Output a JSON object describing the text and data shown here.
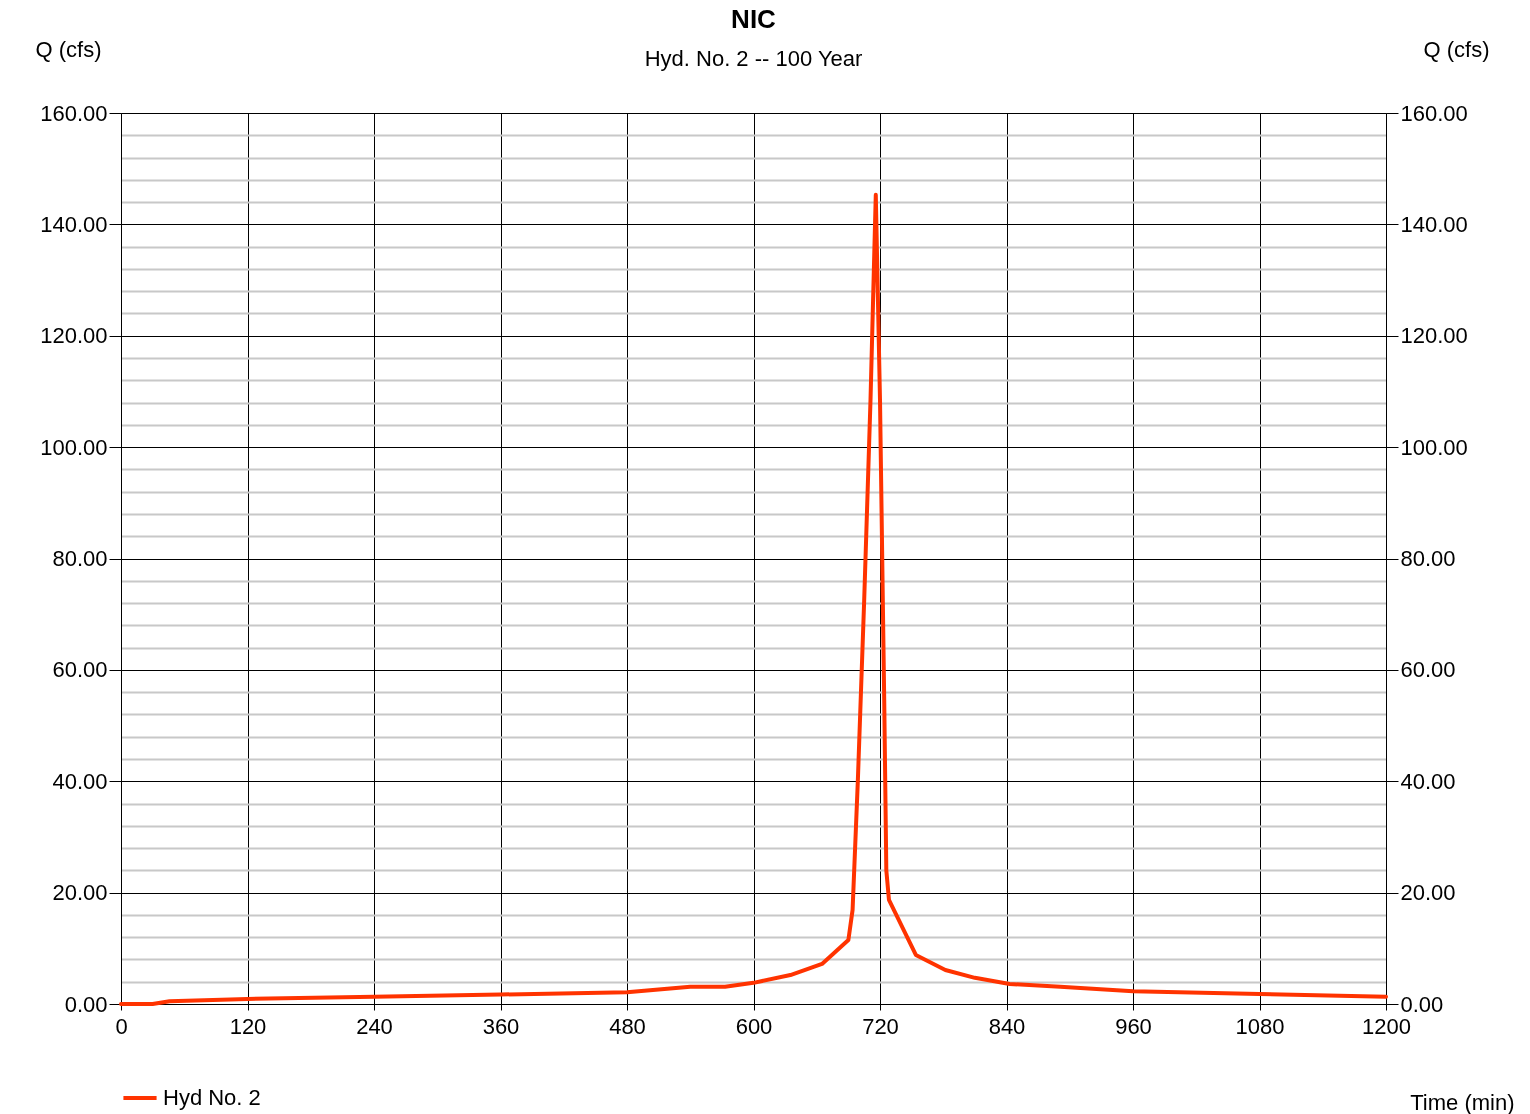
{
  "chart_data": {
    "type": "line",
    "title": "NIC",
    "subtitle": "Hyd. No. 2 -- 100 Year",
    "xlabel": "Time (min)",
    "ylabel": "Q (cfs)",
    "y2label": "Q (cfs)",
    "series": [
      {
        "name": "Hyd No. 2",
        "color": "#ff3300",
        "x": [
          0,
          30,
          46,
          120,
          240,
          360,
          480,
          540,
          573,
          600,
          635,
          665,
          690,
          694,
          699,
          705,
          711,
          716,
          720,
          724,
          726,
          728.5,
          754,
          782,
          810,
          843,
          891,
          960,
          1080,
          1200
        ],
        "values": [
          0,
          0,
          0.5,
          0.9,
          1.3,
          1.7,
          2.1,
          3.1,
          3.1,
          3.8,
          5.2,
          7.2,
          11.5,
          16.9,
          40.2,
          72.5,
          108.5,
          145.3,
          108.5,
          54.6,
          24,
          18.7,
          8.8,
          6.1,
          4.7,
          3.6,
          3.1,
          2.3,
          1.8,
          1.3
        ]
      }
    ],
    "xlim": [
      0,
      1200
    ],
    "xticks": [
      0,
      120,
      240,
      360,
      480,
      600,
      720,
      840,
      960,
      1080,
      1200
    ],
    "ylim": [
      0,
      160
    ],
    "yticks": [
      {
        "value": 0,
        "label": "0.00"
      },
      {
        "value": 4,
        "label": null
      },
      {
        "value": 8,
        "label": null
      },
      {
        "value": 12,
        "label": null
      },
      {
        "value": 16,
        "label": null
      },
      {
        "value": 20,
        "label": "20.00"
      },
      {
        "value": 24,
        "label": null
      },
      {
        "value": 28,
        "label": null
      },
      {
        "value": 32,
        "label": null
      },
      {
        "value": 36,
        "label": null
      },
      {
        "value": 40,
        "label": "40.00"
      },
      {
        "value": 44,
        "label": null
      },
      {
        "value": 48,
        "label": null
      },
      {
        "value": 52,
        "label": null
      },
      {
        "value": 56,
        "label": null
      },
      {
        "value": 60,
        "label": "60.00"
      },
      {
        "value": 64,
        "label": null
      },
      {
        "value": 68,
        "label": null
      },
      {
        "value": 72,
        "label": null
      },
      {
        "value": 76,
        "label": null
      },
      {
        "value": 80,
        "label": "80.00"
      },
      {
        "value": 84,
        "label": null
      },
      {
        "value": 88,
        "label": null
      },
      {
        "value": 92,
        "label": null
      },
      {
        "value": 96,
        "label": null
      },
      {
        "value": 100,
        "label": "100.00"
      },
      {
        "value": 104,
        "label": null
      },
      {
        "value": 108,
        "label": null
      },
      {
        "value": 112,
        "label": null
      },
      {
        "value": 116,
        "label": null
      },
      {
        "value": 120,
        "label": "120.00"
      },
      {
        "value": 124,
        "label": null
      },
      {
        "value": 128,
        "label": null
      },
      {
        "value": 132,
        "label": null
      },
      {
        "value": 136,
        "label": null
      },
      {
        "value": 140,
        "label": "140.00"
      },
      {
        "value": 144,
        "label": null
      },
      {
        "value": 148,
        "label": null
      },
      {
        "value": 152,
        "label": null
      },
      {
        "value": 156,
        "label": null
      },
      {
        "value": 160,
        "label": "160.00"
      }
    ],
    "y2lim": [
      0,
      160
    ],
    "y2ticks": [
      {
        "value": 0,
        "label": "0.00"
      },
      {
        "value": 20,
        "label": "20.00"
      },
      {
        "value": 40,
        "label": "40.00"
      },
      {
        "value": 60,
        "label": "60.00"
      },
      {
        "value": 80,
        "label": "80.00"
      },
      {
        "value": 100,
        "label": "100.00"
      },
      {
        "value": 120,
        "label": "120.00"
      },
      {
        "value": 140,
        "label": "140.00"
      },
      {
        "value": 160,
        "label": "160.00"
      }
    ],
    "grid": true,
    "legend": "bottom left",
    "line_style": "solid",
    "marker": "none"
  }
}
